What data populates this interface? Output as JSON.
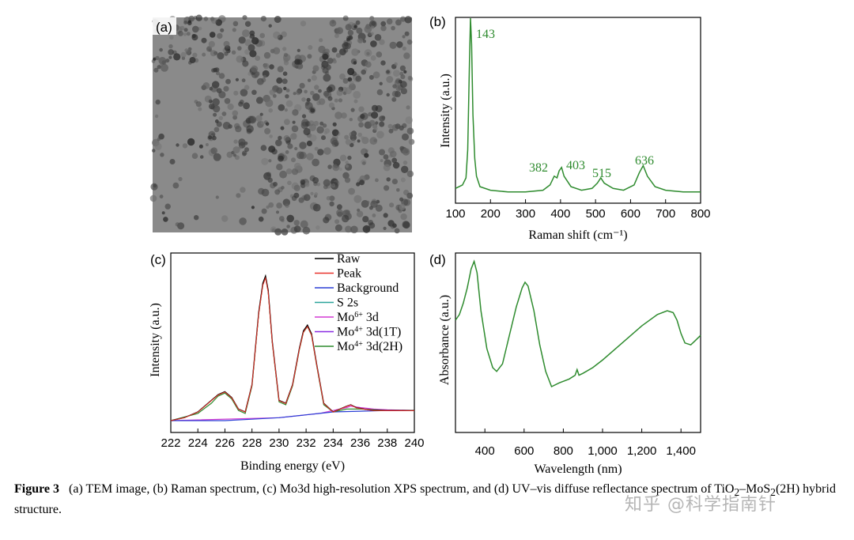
{
  "panels": {
    "a": {
      "tag": "(a)"
    },
    "b": {
      "tag": "(b)"
    },
    "c": {
      "tag": "(c)"
    },
    "d": {
      "tag": "(d)"
    }
  },
  "caption": {
    "label": "Figure 3",
    "text_part1": "(a) TEM image, (b) Raman spectrum, (c) Mo3d high-resolution XPS spectrum, and (d) UV–vis diffuse reflectance spectrum of TiO",
    "sub1": "2",
    "text_part2": "–MoS",
    "sub2": "2",
    "text_part3": "(2H) hybrid structure."
  },
  "watermark": "知乎 @科学指南针",
  "chart_data": [
    {
      "id": "raman",
      "type": "line",
      "title": "",
      "xlabel": "Raman shift (cm⁻¹)",
      "ylabel": "Intensity (a.u.)",
      "xlim": [
        100,
        800
      ],
      "xticks": [
        "100",
        "200",
        "300",
        "400",
        "500",
        "600",
        "700",
        "800"
      ],
      "annotations": [
        "143",
        "382",
        "403",
        "515",
        "636"
      ],
      "color": "#2e8b2e",
      "x": [
        100,
        120,
        130,
        135,
        140,
        143,
        146,
        150,
        155,
        160,
        170,
        200,
        250,
        300,
        350,
        370,
        382,
        390,
        396,
        403,
        410,
        430,
        460,
        490,
        505,
        515,
        525,
        550,
        580,
        610,
        625,
        636,
        648,
        670,
        700,
        750,
        800
      ],
      "y": [
        0.03,
        0.05,
        0.09,
        0.25,
        0.75,
        1.0,
        0.85,
        0.45,
        0.2,
        0.1,
        0.04,
        0.02,
        0.01,
        0.01,
        0.02,
        0.05,
        0.1,
        0.09,
        0.13,
        0.15,
        0.1,
        0.04,
        0.02,
        0.03,
        0.06,
        0.09,
        0.06,
        0.03,
        0.02,
        0.05,
        0.12,
        0.16,
        0.1,
        0.04,
        0.02,
        0.01,
        0.01
      ]
    },
    {
      "id": "xps",
      "type": "line",
      "title": "",
      "xlabel": "Binding energy (eV)",
      "ylabel": "Intensity (a.u.)",
      "xlim": [
        222,
        240
      ],
      "xticks": [
        "222",
        "224",
        "226",
        "228",
        "230",
        "232",
        "234",
        "236",
        "238",
        "240"
      ],
      "legend": [
        "Raw",
        "Peak",
        "Background",
        "S 2s",
        "Mo6+ 3d",
        "Mo4+ 3d(1T)",
        "Mo4+ 3d(2H)"
      ],
      "legend_html": [
        "Raw",
        "Peak",
        "Background",
        "S 2s",
        "Mo<tspan baseline-shift='super' font-size='10'>6+</tspan> 3d",
        "Mo<tspan baseline-shift='super' font-size='10'>4+</tspan> 3d(1T)",
        "Mo<tspan baseline-shift='super' font-size='10'>4+</tspan> 3d(2H)"
      ],
      "legend_colors": [
        "#000000",
        "#e8312a",
        "#2a3fd6",
        "#2aa39a",
        "#d43ad4",
        "#8a2be2",
        "#2e8b2e"
      ],
      "series": [
        {
          "name": "Raw",
          "x": [
            222,
            223,
            224,
            225,
            225.5,
            226,
            226.5,
            227,
            227.5,
            228,
            228.5,
            228.8,
            229,
            229.2,
            229.5,
            230,
            230.5,
            231,
            231.5,
            231.8,
            232.1,
            232.4,
            232.8,
            233.3,
            234,
            234.5,
            235,
            235.3,
            235.7,
            236.3,
            237,
            238,
            239,
            240
          ],
          "y": [
            0.0,
            0.02,
            0.06,
            0.14,
            0.18,
            0.2,
            0.16,
            0.08,
            0.06,
            0.25,
            0.75,
            0.95,
            1.0,
            0.9,
            0.55,
            0.14,
            0.12,
            0.25,
            0.5,
            0.62,
            0.66,
            0.6,
            0.38,
            0.12,
            0.06,
            0.08,
            0.1,
            0.11,
            0.09,
            0.08,
            0.07,
            0.07,
            0.07,
            0.07
          ]
        },
        {
          "name": "Mo4+ 3d(2H)",
          "x": [
            222,
            224,
            225,
            225.5,
            226,
            226.5,
            227,
            227.5,
            228,
            228.5,
            228.8,
            229,
            229.2,
            229.5,
            230,
            230.5,
            231,
            231.5,
            231.8,
            232.1,
            232.4,
            232.8,
            233.3,
            234,
            235,
            236,
            238,
            240
          ],
          "y": [
            0.0,
            0.05,
            0.12,
            0.17,
            0.19,
            0.15,
            0.07,
            0.05,
            0.24,
            0.74,
            0.94,
            0.99,
            0.89,
            0.54,
            0.13,
            0.11,
            0.24,
            0.49,
            0.61,
            0.65,
            0.59,
            0.37,
            0.11,
            0.06,
            0.08,
            0.08,
            0.07,
            0.07
          ]
        },
        {
          "name": "Background",
          "x": [
            222,
            226,
            228,
            230,
            232,
            233,
            234,
            236,
            238,
            240
          ],
          "y": [
            0.0,
            0.0,
            0.01,
            0.02,
            0.04,
            0.05,
            0.06,
            0.065,
            0.07,
            0.07
          ]
        },
        {
          "name": "Mo6+ 3d",
          "x": [
            222,
            230,
            232,
            233,
            234,
            235,
            235.3,
            236,
            237,
            238,
            240
          ],
          "y": [
            0.0,
            0.02,
            0.04,
            0.05,
            0.07,
            0.09,
            0.1,
            0.09,
            0.08,
            0.075,
            0.07
          ]
        }
      ]
    },
    {
      "id": "uvvis",
      "type": "line",
      "title": "",
      "xlabel": "Wavelength (nm)",
      "ylabel": "Absorbance (a.u.)",
      "xlim": [
        250,
        1500
      ],
      "xticks": [
        "400",
        "600",
        "800",
        "1,000",
        "1,200",
        "1,400"
      ],
      "color": "#2e8b2e",
      "x": [
        250,
        270,
        290,
        310,
        330,
        345,
        360,
        380,
        410,
        440,
        460,
        490,
        520,
        560,
        590,
        605,
        620,
        650,
        680,
        710,
        740,
        780,
        830,
        860,
        870,
        880,
        900,
        950,
        1000,
        1100,
        1200,
        1280,
        1330,
        1360,
        1380,
        1400,
        1420,
        1450,
        1470,
        1500
      ],
      "y": [
        0.55,
        0.58,
        0.64,
        0.72,
        0.82,
        0.86,
        0.8,
        0.6,
        0.4,
        0.3,
        0.28,
        0.32,
        0.45,
        0.62,
        0.72,
        0.75,
        0.73,
        0.6,
        0.42,
        0.28,
        0.2,
        0.22,
        0.24,
        0.26,
        0.29,
        0.26,
        0.27,
        0.3,
        0.34,
        0.43,
        0.52,
        0.58,
        0.6,
        0.59,
        0.55,
        0.48,
        0.43,
        0.42,
        0.44,
        0.47
      ]
    }
  ]
}
